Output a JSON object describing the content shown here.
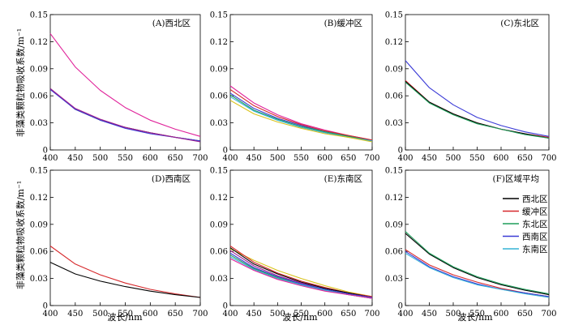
{
  "figure": {
    "y_axis_title": "非藻类颗粒物吸收系数/m⁻¹",
    "x_axis_title": "波长/nm"
  },
  "legend": {
    "placement": "inside panel F, right",
    "items": [
      {
        "label": "西北区",
        "color": "#000000"
      },
      {
        "label": "缓冲区",
        "color": "#d6282b"
      },
      {
        "label": "东北区",
        "color": "#1e9e5a"
      },
      {
        "label": "西南区",
        "color": "#3a3ad6"
      },
      {
        "label": "东南区",
        "color": "#35b3d6"
      }
    ]
  },
  "chart_data": [
    {
      "type": "line",
      "title": "(A)西北区",
      "xlabel": "",
      "ylabel": "非藻类颗粒物吸收系数/m⁻¹",
      "xlim": [
        400,
        700
      ],
      "ylim": [
        0,
        0.15
      ],
      "xticks": [
        "400",
        "450",
        "500",
        "550",
        "600",
        "650",
        "700"
      ],
      "yticks": [
        "0",
        "0.03",
        "0.06",
        "0.09",
        "0.12",
        "0.15"
      ],
      "grid": false,
      "series": [
        {
          "color": "#e0229a",
          "x": [
            400,
            450,
            500,
            550,
            600,
            650,
            700
          ],
          "y": [
            0.129,
            0.092,
            0.066,
            0.047,
            0.033,
            0.023,
            0.015
          ]
        },
        {
          "color": "#000000",
          "x": [
            400,
            450,
            500,
            550,
            600,
            650,
            700
          ],
          "y": [
            0.068,
            0.045,
            0.033,
            0.025,
            0.019,
            0.014,
            0.01
          ]
        },
        {
          "color": "#3a3ad6",
          "x": [
            400,
            450,
            500,
            550,
            600,
            650,
            700
          ],
          "y": [
            0.067,
            0.045,
            0.033,
            0.024,
            0.018,
            0.014,
            0.01
          ]
        },
        {
          "color": "#a02090",
          "x": [
            400,
            450,
            500,
            550,
            600,
            650,
            700
          ],
          "y": [
            0.068,
            0.046,
            0.034,
            0.025,
            0.019,
            0.014,
            0.009
          ]
        }
      ]
    },
    {
      "type": "line",
      "title": "(B)缓冲区",
      "xlabel": "",
      "ylabel": "",
      "xlim": [
        400,
        700
      ],
      "ylim": [
        0,
        0.15
      ],
      "xticks": [
        "400",
        "450",
        "500",
        "550",
        "600",
        "650",
        "700"
      ],
      "yticks": [
        "0",
        "0.03",
        "0.06",
        "0.09",
        "0.12",
        "0.15"
      ],
      "grid": false,
      "series": [
        {
          "color": "#e0229a",
          "x": [
            400,
            450,
            500,
            550,
            600,
            650,
            700
          ],
          "y": [
            0.071,
            0.052,
            0.039,
            0.029,
            0.022,
            0.016,
            0.011
          ]
        },
        {
          "color": "#d6282b",
          "x": [
            400,
            450,
            500,
            550,
            600,
            650,
            700
          ],
          "y": [
            0.067,
            0.049,
            0.037,
            0.028,
            0.021,
            0.016,
            0.011
          ]
        },
        {
          "color": "#3a3ad6",
          "x": [
            400,
            450,
            500,
            550,
            600,
            650,
            700
          ],
          "y": [
            0.063,
            0.046,
            0.035,
            0.027,
            0.02,
            0.015,
            0.01
          ]
        },
        {
          "color": "#1e9e5a",
          "x": [
            400,
            450,
            500,
            550,
            600,
            650,
            700
          ],
          "y": [
            0.061,
            0.044,
            0.034,
            0.026,
            0.02,
            0.015,
            0.01
          ]
        },
        {
          "color": "#35b3d6",
          "x": [
            400,
            450,
            500,
            550,
            600,
            650,
            700
          ],
          "y": [
            0.059,
            0.043,
            0.033,
            0.025,
            0.019,
            0.014,
            0.01
          ]
        },
        {
          "color": "#d9c21a",
          "x": [
            400,
            450,
            500,
            550,
            600,
            650,
            700
          ],
          "y": [
            0.055,
            0.04,
            0.031,
            0.024,
            0.018,
            0.014,
            0.009
          ]
        }
      ]
    },
    {
      "type": "line",
      "title": "(C)东北区",
      "xlabel": "",
      "ylabel": "",
      "xlim": [
        400,
        700
      ],
      "ylim": [
        0,
        0.15
      ],
      "xticks": [
        "400",
        "450",
        "500",
        "550",
        "600",
        "650",
        "700"
      ],
      "yticks": [
        "0",
        "0.03",
        "0.06",
        "0.09",
        "0.12",
        "0.15"
      ],
      "grid": false,
      "series": [
        {
          "color": "#3a3ad6",
          "x": [
            400,
            450,
            500,
            550,
            600,
            650,
            700
          ],
          "y": [
            0.099,
            0.069,
            0.05,
            0.036,
            0.027,
            0.02,
            0.015
          ]
        },
        {
          "color": "#d6282b",
          "x": [
            400,
            450,
            500,
            550,
            600,
            650,
            700
          ],
          "y": [
            0.077,
            0.053,
            0.04,
            0.03,
            0.023,
            0.018,
            0.014
          ]
        },
        {
          "color": "#000000",
          "x": [
            400,
            450,
            500,
            550,
            600,
            650,
            700
          ],
          "y": [
            0.076,
            0.053,
            0.04,
            0.03,
            0.023,
            0.018,
            0.013
          ]
        },
        {
          "color": "#1e9e5a",
          "x": [
            400,
            450,
            500,
            550,
            600,
            650,
            700
          ],
          "y": [
            0.075,
            0.052,
            0.039,
            0.029,
            0.023,
            0.017,
            0.013
          ]
        }
      ]
    },
    {
      "type": "line",
      "title": "(D)西南区",
      "xlabel": "",
      "ylabel": "非藻类颗粒物吸收系数/m⁻¹",
      "xlim": [
        400,
        700
      ],
      "ylim": [
        0,
        0.15
      ],
      "xticks": [
        "400",
        "450",
        "500",
        "550",
        "600",
        "650",
        "700"
      ],
      "yticks": [
        "0",
        "0.03",
        "0.06",
        "0.09",
        "0.12",
        "0.15"
      ],
      "grid": false,
      "series": [
        {
          "color": "#d6282b",
          "x": [
            400,
            450,
            500,
            550,
            600,
            650,
            700
          ],
          "y": [
            0.066,
            0.046,
            0.034,
            0.025,
            0.018,
            0.013,
            0.009
          ]
        },
        {
          "color": "#000000",
          "x": [
            400,
            450,
            500,
            550,
            600,
            650,
            700
          ],
          "y": [
            0.048,
            0.035,
            0.027,
            0.021,
            0.016,
            0.012,
            0.009
          ]
        }
      ]
    },
    {
      "type": "line",
      "title": "(E)东南区",
      "xlabel": "波长/nm",
      "ylabel": "",
      "xlim": [
        400,
        700
      ],
      "ylim": [
        0,
        0.15
      ],
      "xticks": [
        "400",
        "450",
        "500",
        "550",
        "600",
        "650",
        "700"
      ],
      "yticks": [
        "0",
        "0.03",
        "0.06",
        "0.09",
        "0.12",
        "0.15"
      ],
      "grid": false,
      "series": [
        {
          "color": "#d9c21a",
          "x": [
            400,
            450,
            500,
            550,
            600,
            650,
            700
          ],
          "y": [
            0.063,
            0.05,
            0.039,
            0.03,
            0.022,
            0.015,
            0.01
          ]
        },
        {
          "color": "#d6282b",
          "x": [
            400,
            450,
            500,
            550,
            600,
            650,
            700
          ],
          "y": [
            0.066,
            0.048,
            0.036,
            0.027,
            0.02,
            0.014,
            0.01
          ]
        },
        {
          "color": "#000000",
          "x": [
            400,
            450,
            500,
            550,
            600,
            650,
            700
          ],
          "y": [
            0.064,
            0.046,
            0.035,
            0.026,
            0.019,
            0.014,
            0.009
          ]
        },
        {
          "color": "#a02090",
          "x": [
            400,
            450,
            500,
            550,
            600,
            650,
            700
          ],
          "y": [
            0.061,
            0.044,
            0.033,
            0.025,
            0.018,
            0.013,
            0.009
          ]
        },
        {
          "color": "#3a3ad6",
          "x": [
            400,
            450,
            500,
            550,
            600,
            650,
            700
          ],
          "y": [
            0.058,
            0.042,
            0.032,
            0.024,
            0.018,
            0.013,
            0.009
          ]
        },
        {
          "color": "#1e9e5a",
          "x": [
            400,
            450,
            500,
            550,
            600,
            650,
            700
          ],
          "y": [
            0.056,
            0.041,
            0.031,
            0.023,
            0.017,
            0.012,
            0.008
          ]
        },
        {
          "color": "#35b3d6",
          "x": [
            400,
            450,
            500,
            550,
            600,
            650,
            700
          ],
          "y": [
            0.054,
            0.04,
            0.03,
            0.023,
            0.017,
            0.012,
            0.008
          ]
        },
        {
          "color": "#e0229a",
          "x": [
            400,
            450,
            500,
            550,
            600,
            650,
            700
          ],
          "y": [
            0.052,
            0.039,
            0.029,
            0.022,
            0.016,
            0.012,
            0.008
          ]
        }
      ]
    },
    {
      "type": "line",
      "title": "(F)区域平均",
      "xlabel": "",
      "ylabel": "",
      "xlim": [
        400,
        700
      ],
      "ylim": [
        0,
        0.15
      ],
      "xticks": [
        "400",
        "450",
        "500",
        "550",
        "600",
        "650",
        "700"
      ],
      "yticks": [
        "0",
        "0.03",
        "0.06",
        "0.09",
        "0.12",
        "0.15"
      ],
      "grid": false,
      "series": [
        {
          "name": "西北区",
          "color": "#000000",
          "x": [
            400,
            450,
            500,
            550,
            600,
            650,
            700
          ],
          "y": [
            0.08,
            0.057,
            0.042,
            0.031,
            0.023,
            0.017,
            0.012
          ]
        },
        {
          "name": "缓冲区",
          "color": "#d6282b",
          "x": [
            400,
            450,
            500,
            550,
            600,
            650,
            700
          ],
          "y": [
            0.062,
            0.045,
            0.034,
            0.026,
            0.019,
            0.014,
            0.01
          ]
        },
        {
          "name": "东北区",
          "color": "#1e9e5a",
          "x": [
            400,
            450,
            500,
            550,
            600,
            650,
            700
          ],
          "y": [
            0.082,
            0.058,
            0.043,
            0.032,
            0.024,
            0.018,
            0.013
          ]
        },
        {
          "name": "西南区",
          "color": "#3a3ad6",
          "x": [
            400,
            450,
            500,
            550,
            600,
            650,
            700
          ],
          "y": [
            0.06,
            0.043,
            0.032,
            0.024,
            0.018,
            0.014,
            0.01
          ]
        },
        {
          "name": "东南区",
          "color": "#35b3d6",
          "x": [
            400,
            450,
            500,
            550,
            600,
            650,
            700
          ],
          "y": [
            0.058,
            0.042,
            0.031,
            0.023,
            0.018,
            0.013,
            0.009
          ]
        }
      ]
    }
  ]
}
